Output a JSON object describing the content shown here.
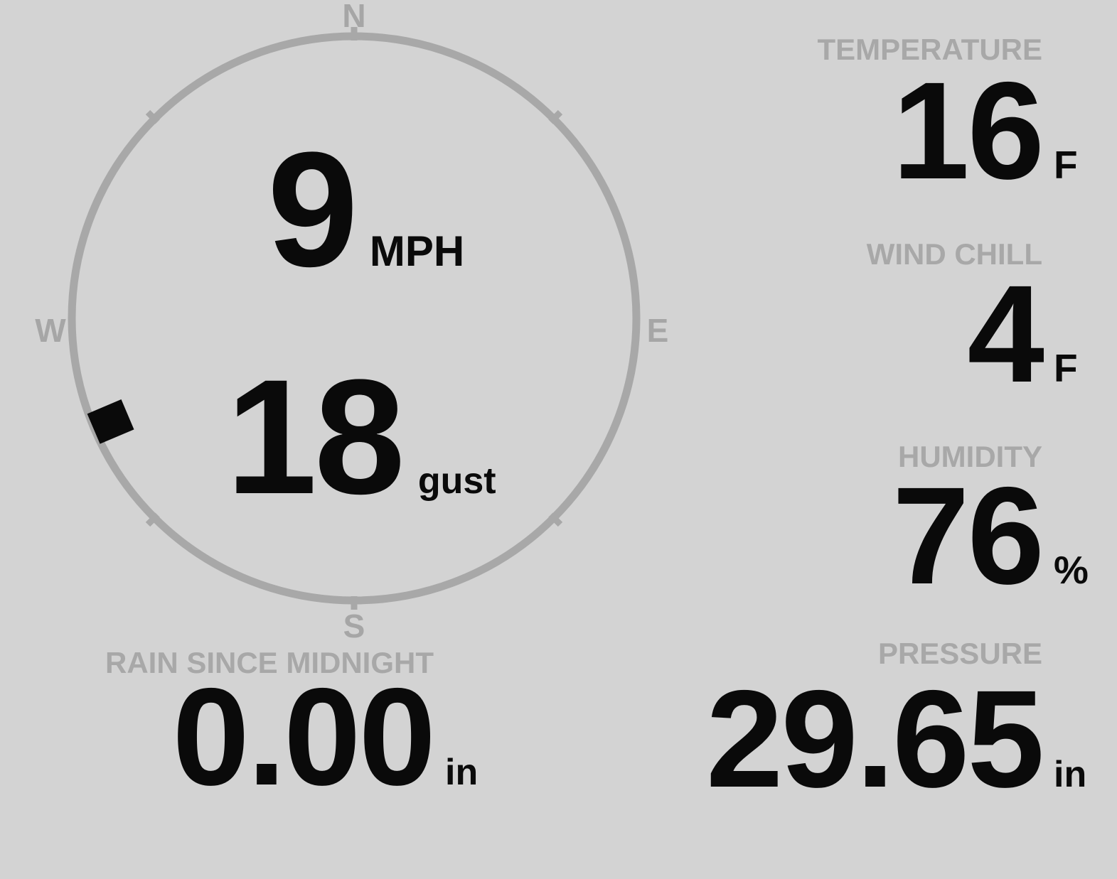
{
  "app": {
    "kind": "weather-station-console",
    "colors": {
      "background": "#d3d3d3",
      "muted_gray": "#a8a8a8",
      "dial_gray": "#a8a8a8",
      "value_black": "#0a0a0a"
    }
  },
  "compass": {
    "labels": {
      "north": "N",
      "east": "E",
      "south": "S",
      "west": "W"
    },
    "wind_speed": {
      "value": "9",
      "unit": "MPH"
    },
    "wind_gust": {
      "value": "18",
      "unit": "gust"
    },
    "wind_direction_deg": 247
  },
  "metrics": {
    "temperature": {
      "label": "TEMPERATURE",
      "value": "16",
      "unit": "F"
    },
    "wind_chill": {
      "label": "WIND CHILL",
      "value": "4",
      "unit": "F"
    },
    "humidity": {
      "label": "HUMIDITY",
      "value": "76",
      "unit": "%"
    },
    "rain_since_midnight": {
      "label": "RAIN SINCE MIDNIGHT",
      "value": "0.00",
      "unit": "in"
    },
    "pressure": {
      "label": "PRESSURE",
      "value": "29.65",
      "unit": "in"
    }
  }
}
